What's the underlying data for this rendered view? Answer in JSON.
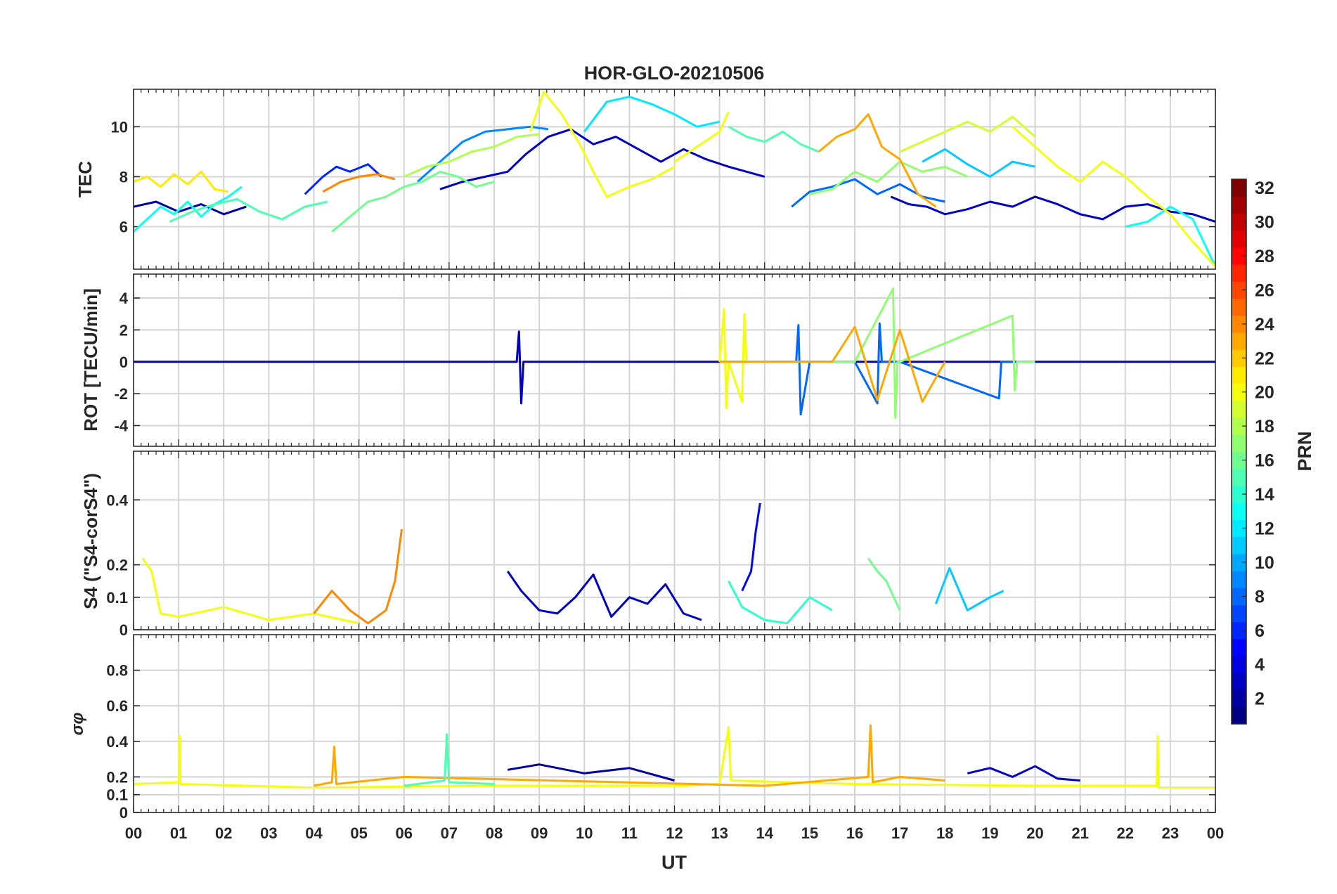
{
  "title": "HOR-GLO-20210506",
  "x_axis": {
    "label": "UT",
    "range": [
      0,
      24
    ],
    "tick_labels": [
      "00",
      "01",
      "02",
      "03",
      "04",
      "05",
      "06",
      "07",
      "08",
      "09",
      "10",
      "11",
      "12",
      "13",
      "14",
      "15",
      "16",
      "17",
      "18",
      "19",
      "20",
      "21",
      "22",
      "23",
      "00"
    ]
  },
  "colorbar": {
    "label": "PRN",
    "range": [
      1,
      32
    ],
    "tick_labels": [
      "2",
      "4",
      "6",
      "8",
      "10",
      "12",
      "14",
      "16",
      "18",
      "20",
      "22",
      "24",
      "26",
      "28",
      "30",
      "32"
    ],
    "colormap": "jet",
    "colors": [
      "#00007f",
      "#0000ff",
      "#007fff",
      "#00ffff",
      "#7fff7f",
      "#ffff00",
      "#ff7f00",
      "#ff0000",
      "#7f0000"
    ]
  },
  "chart_data": [
    {
      "type": "line",
      "ylabel": "TEC",
      "ylim": [
        4.3,
        11.5
      ],
      "yticks": [
        6,
        8,
        10
      ],
      "grid": true,
      "series": [
        {
          "prn": 2,
          "x": [
            0.0,
            0.5,
            1.0,
            1.5,
            2.0,
            2.5
          ],
          "y": [
            6.8,
            7.0,
            6.6,
            6.9,
            6.5,
            6.8
          ]
        },
        {
          "prn": 3,
          "x": [
            6.8,
            7.3,
            7.8,
            8.3,
            8.7,
            9.2,
            9.7,
            10.2,
            10.7,
            11.2,
            11.7,
            12.2,
            12.7,
            13.2,
            13.6,
            14.0
          ],
          "y": [
            7.5,
            7.8,
            8.0,
            8.2,
            8.9,
            9.6,
            9.9,
            9.3,
            9.6,
            9.1,
            8.6,
            9.1,
            8.7,
            8.4,
            8.2,
            8.0
          ]
        },
        {
          "prn": 3,
          "x": [
            16.8,
            17.2,
            17.6,
            18.0,
            18.5,
            19.0,
            19.5,
            20.0,
            20.5,
            21.0,
            21.5,
            22.0,
            22.5,
            23.0,
            23.5,
            24.0
          ],
          "y": [
            7.2,
            6.9,
            6.8,
            6.5,
            6.7,
            7.0,
            6.8,
            7.2,
            6.9,
            6.5,
            6.3,
            6.8,
            6.9,
            6.6,
            6.5,
            6.2
          ]
        },
        {
          "prn": 6,
          "x": [
            3.8,
            4.2,
            4.5,
            4.8,
            5.2,
            5.5
          ],
          "y": [
            7.3,
            8.0,
            8.4,
            8.2,
            8.5,
            8.0
          ]
        },
        {
          "prn": 8,
          "x": [
            14.6,
            15.0,
            15.5,
            16.0,
            16.5,
            17.0,
            17.5,
            18.0
          ],
          "y": [
            6.8,
            7.4,
            7.6,
            7.9,
            7.3,
            7.7,
            7.2,
            7.0
          ]
        },
        {
          "prn": 9,
          "x": [
            6.3,
            6.8,
            7.3,
            7.8,
            8.3,
            8.8,
            9.2
          ],
          "y": [
            7.8,
            8.6,
            9.4,
            9.8,
            9.9,
            10.0,
            9.9
          ]
        },
        {
          "prn": 11,
          "x": [
            17.5,
            18.0,
            18.5,
            19.0,
            19.5,
            20.0
          ],
          "y": [
            8.6,
            9.1,
            8.5,
            8.0,
            8.6,
            8.4
          ]
        },
        {
          "prn": 12,
          "x": [
            10.0,
            10.5,
            11.0,
            11.5,
            12.0,
            12.5,
            13.0
          ],
          "y": [
            9.8,
            11.0,
            11.2,
            10.9,
            10.5,
            10.0,
            10.2
          ]
        },
        {
          "prn": 13,
          "x": [
            0.0,
            0.3,
            0.6,
            0.9,
            1.2,
            1.5,
            1.8,
            2.1,
            2.4
          ],
          "y": [
            5.8,
            6.3,
            6.8,
            6.5,
            7.0,
            6.4,
            6.9,
            7.2,
            7.6
          ]
        },
        {
          "prn": 13,
          "x": [
            22.0,
            22.5,
            23.0,
            23.5,
            24.0
          ],
          "y": [
            6.0,
            6.2,
            6.8,
            6.3,
            4.4
          ]
        },
        {
          "prn": 15,
          "x": [
            13.2,
            13.6,
            14.0,
            14.4,
            14.8,
            15.2
          ],
          "y": [
            10.0,
            9.6,
            9.4,
            9.8,
            9.3,
            9.0
          ]
        },
        {
          "prn": 15,
          "x": [
            0.8,
            1.3,
            1.8,
            2.3,
            2.8,
            3.3,
            3.8,
            4.3
          ],
          "y": [
            6.2,
            6.6,
            6.9,
            7.1,
            6.6,
            6.3,
            6.8,
            7.0
          ]
        },
        {
          "prn": 16,
          "x": [
            4.4,
            4.8,
            5.2,
            5.6,
            6.0,
            6.4,
            6.8,
            7.2,
            7.6,
            8.0
          ],
          "y": [
            5.8,
            6.4,
            7.0,
            7.2,
            7.6,
            7.8,
            8.2,
            8.0,
            7.6,
            7.8
          ]
        },
        {
          "prn": 17,
          "x": [
            15.0,
            15.5,
            16.0,
            16.5,
            17.0,
            17.5,
            18.0,
            18.5
          ],
          "y": [
            7.3,
            7.5,
            8.2,
            7.8,
            8.6,
            8.2,
            8.4,
            8.0
          ]
        },
        {
          "prn": 18,
          "x": [
            6.0,
            6.5,
            7.0,
            7.5,
            8.0,
            8.5,
            9.0
          ],
          "y": [
            8.0,
            8.4,
            8.6,
            9.0,
            9.2,
            9.6,
            9.7
          ]
        },
        {
          "prn": 19,
          "x": [
            17.0,
            17.5,
            18.0,
            18.5,
            19.0,
            19.5,
            20.0
          ],
          "y": [
            9.0,
            9.4,
            9.8,
            10.2,
            9.8,
            10.4,
            9.6
          ]
        },
        {
          "prn": 20,
          "x": [
            8.8,
            9.1,
            9.5,
            9.9,
            10.2,
            10.5,
            11.0,
            11.5,
            12.0
          ],
          "y": [
            9.8,
            11.4,
            10.5,
            9.3,
            8.2,
            7.2,
            7.6,
            7.9,
            8.4
          ]
        },
        {
          "prn": 20,
          "x": [
            12.0,
            12.5,
            13.0,
            13.2
          ],
          "y": [
            8.6,
            9.2,
            9.8,
            10.6
          ]
        },
        {
          "prn": 20,
          "x": [
            19.5,
            20.0,
            20.5,
            21.0,
            21.5,
            22.0,
            22.5,
            23.0,
            23.5,
            24.0
          ],
          "y": [
            10.0,
            9.2,
            8.4,
            7.8,
            8.6,
            8.0,
            7.2,
            6.5,
            5.4,
            4.4
          ]
        },
        {
          "prn": 21,
          "x": [
            0.0,
            0.3,
            0.6,
            0.9,
            1.2,
            1.5,
            1.8,
            2.1
          ],
          "y": [
            7.8,
            8.0,
            7.6,
            8.1,
            7.7,
            8.2,
            7.5,
            7.4
          ]
        },
        {
          "prn": 23,
          "x": [
            15.2,
            15.6,
            16.0,
            16.3,
            16.6,
            17.0,
            17.4,
            17.8
          ],
          "y": [
            9.0,
            9.6,
            9.9,
            10.5,
            9.2,
            8.7,
            7.3,
            6.8
          ]
        },
        {
          "prn": 24,
          "x": [
            4.2,
            4.6,
            5.0,
            5.4,
            5.8
          ],
          "y": [
            7.4,
            7.8,
            8.0,
            8.1,
            7.9
          ]
        }
      ]
    },
    {
      "type": "line",
      "ylabel": "ROT [TECU/min]",
      "ylim": [
        -5.3,
        5.5
      ],
      "yticks": [
        -4,
        -2,
        0,
        2,
        4
      ],
      "grid": true,
      "series": [
        {
          "prn": 3,
          "x": [
            0.0,
            6.0,
            8.5,
            8.55,
            8.6,
            8.65,
            12.0,
            14.0,
            17.0,
            20.0,
            24.0
          ],
          "y": [
            0.0,
            0.0,
            0.0,
            1.9,
            -2.6,
            0.0,
            0.0,
            0.0,
            0.0,
            0.0,
            0.0
          ]
        },
        {
          "prn": 8,
          "x": [
            13.0,
            14.7,
            14.75,
            14.8,
            15.0,
            16.0,
            16.5,
            16.55,
            16.6,
            17.0,
            19.2,
            19.25,
            19.3,
            20.0
          ],
          "y": [
            0.0,
            0.0,
            2.3,
            -3.3,
            0.0,
            0.0,
            -2.6,
            2.4,
            0.0,
            0.0,
            -2.3,
            0.0,
            0.0,
            0.0
          ]
        },
        {
          "prn": 17,
          "x": [
            13.0,
            16.0,
            16.85,
            16.9,
            16.95,
            17.0,
            19.5,
            19.55,
            19.6,
            20.0
          ],
          "y": [
            0.0,
            0.0,
            4.6,
            -3.5,
            0.0,
            0.0,
            2.9,
            -1.8,
            0.0,
            0.0
          ]
        },
        {
          "prn": 20,
          "x": [
            13.0,
            13.1,
            13.15,
            13.2,
            13.5,
            13.55,
            13.6,
            14.0
          ],
          "y": [
            0.0,
            3.3,
            -2.9,
            0.0,
            -2.5,
            3.0,
            0.0,
            0.0
          ]
        },
        {
          "prn": 23,
          "x": [
            13.0,
            15.5,
            16.0,
            16.5,
            17.0,
            17.5,
            18.0
          ],
          "y": [
            0.0,
            0.0,
            2.2,
            -2.4,
            2.0,
            -2.5,
            0.0
          ]
        }
      ]
    },
    {
      "type": "line",
      "ylabel": "S4 (\"S4-corS4\")",
      "ylim": [
        0,
        0.55
      ],
      "yticks": [
        0,
        0.1,
        0.2,
        0.4
      ],
      "ytick_labels": [
        "0",
        "0.1",
        "0.2",
        "0.4"
      ],
      "grid": true,
      "series": [
        {
          "prn": 3,
          "x": [
            8.3,
            8.6,
            9.0,
            9.4,
            9.8,
            10.2,
            10.6,
            11.0,
            11.4,
            11.8,
            12.2,
            12.6
          ],
          "y": [
            0.18,
            0.12,
            0.06,
            0.05,
            0.1,
            0.17,
            0.04,
            0.1,
            0.08,
            0.14,
            0.05,
            0.03
          ]
        },
        {
          "prn": 5,
          "x": [
            13.5,
            13.7,
            13.8,
            13.9
          ],
          "y": [
            0.12,
            0.18,
            0.3,
            0.39
          ]
        },
        {
          "prn": 14,
          "x": [
            13.2,
            13.5,
            14.0,
            14.5,
            15.0,
            15.5
          ],
          "y": [
            0.15,
            0.07,
            0.03,
            0.02,
            0.1,
            0.06
          ]
        },
        {
          "prn": 16,
          "x": [
            16.3,
            16.5,
            16.7,
            17.0
          ],
          "y": [
            0.22,
            0.18,
            0.15,
            0.06
          ]
        },
        {
          "prn": 11,
          "x": [
            17.8,
            18.1,
            18.5,
            19.0,
            19.3
          ],
          "y": [
            0.08,
            0.19,
            0.06,
            0.1,
            0.12
          ]
        },
        {
          "prn": 20,
          "x": [
            0.2,
            0.4,
            0.6,
            1.0,
            2.0,
            3.0,
            4.0,
            5.0
          ],
          "y": [
            0.22,
            0.18,
            0.05,
            0.04,
            0.07,
            0.03,
            0.05,
            0.02
          ]
        },
        {
          "prn": 24,
          "x": [
            4.0,
            4.4,
            4.8,
            5.2,
            5.6,
            5.8,
            5.95
          ],
          "y": [
            0.05,
            0.12,
            0.06,
            0.02,
            0.06,
            0.15,
            0.31
          ]
        }
      ]
    },
    {
      "type": "line",
      "ylabel": "σφ",
      "ylim": [
        0,
        1.0
      ],
      "yticks": [
        0,
        0.1,
        0.2,
        0.4,
        0.6,
        0.8
      ],
      "ytick_labels": [
        "0",
        "0.1",
        "0.2",
        "0.4",
        "0.6",
        "0.8"
      ],
      "grid": true,
      "series": [
        {
          "prn": 2,
          "x": [
            8.3,
            9.0,
            10.0,
            11.0,
            12.0
          ],
          "y": [
            0.24,
            0.27,
            0.22,
            0.25,
            0.18
          ]
        },
        {
          "prn": 3,
          "x": [
            18.5,
            19.0,
            19.5,
            20.0,
            20.5,
            21.0
          ],
          "y": [
            0.22,
            0.25,
            0.2,
            0.26,
            0.19,
            0.18
          ]
        },
        {
          "prn": 20,
          "x": [
            0.0,
            1.0,
            1.02,
            1.04,
            4.0,
            8.0,
            12.0,
            13.0,
            13.2,
            13.25,
            16.0,
            20.0,
            22.7,
            22.72,
            22.75,
            24.0
          ],
          "y": [
            0.16,
            0.17,
            0.43,
            0.16,
            0.14,
            0.15,
            0.15,
            0.16,
            0.48,
            0.18,
            0.16,
            0.15,
            0.15,
            0.43,
            0.14,
            0.14
          ]
        },
        {
          "prn": 23,
          "x": [
            4.0,
            4.4,
            4.45,
            4.5,
            6.0,
            14.0,
            16.3,
            16.35,
            16.4,
            17.0,
            18.0
          ],
          "y": [
            0.15,
            0.17,
            0.37,
            0.16,
            0.2,
            0.15,
            0.2,
            0.49,
            0.17,
            0.2,
            0.18
          ]
        },
        {
          "prn": 15,
          "x": [
            6.0,
            6.9,
            6.95,
            7.0,
            8.0
          ],
          "y": [
            0.15,
            0.18,
            0.44,
            0.17,
            0.16
          ]
        }
      ]
    }
  ]
}
